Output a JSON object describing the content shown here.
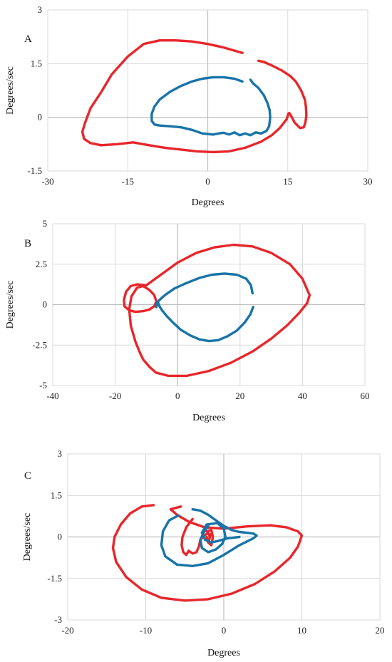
{
  "chart_data": [
    {
      "type": "line",
      "panel_label": "A",
      "xlabel": "Degrees",
      "ylabel": "Degrees/sec",
      "xlim": [
        -30,
        30
      ],
      "ylim": [
        -1.5,
        3
      ],
      "xticks": [
        "-30",
        "-15",
        "0",
        "15",
        "30"
      ],
      "yticks": [
        "-1.5",
        "0",
        "1.5",
        "3"
      ],
      "grid": true,
      "series": [
        {
          "color": "#e8262b",
          "x": [
            6.5,
            3,
            0,
            -3,
            -6,
            -9,
            -12,
            -15,
            -18,
            -20,
            -22,
            -23,
            -23.5,
            -23.2,
            -22,
            -20,
            -17,
            -14,
            -11,
            -8,
            -5,
            -2,
            1,
            4,
            7,
            10,
            12,
            13.5,
            14.8,
            15.1,
            15.3,
            15.6,
            16.3,
            17.3,
            18,
            18.3,
            18.5,
            18.4,
            18.2,
            17.5,
            16.5,
            15.5,
            14,
            12,
            10.5,
            9.5
          ],
          "y": [
            1.8,
            1.95,
            2.05,
            2.12,
            2.15,
            2.15,
            2.05,
            1.7,
            1.2,
            0.7,
            0.25,
            -0.15,
            -0.4,
            -0.6,
            -0.72,
            -0.78,
            -0.75,
            -0.7,
            -0.78,
            -0.85,
            -0.9,
            -0.95,
            -0.97,
            -0.95,
            -0.85,
            -0.68,
            -0.5,
            -0.3,
            -0.05,
            0.1,
            0.12,
            0.05,
            -0.15,
            -0.3,
            -0.28,
            -0.15,
            0.05,
            0.3,
            0.5,
            0.75,
            1.0,
            1.15,
            1.3,
            1.45,
            1.55,
            1.58
          ]
        },
        {
          "color": "#1874a8",
          "x": [
            6.5,
            5,
            3,
            1,
            -1,
            -3,
            -5,
            -7,
            -9,
            -10,
            -10.5,
            -10.5,
            -10,
            -9,
            -7,
            -5,
            -3,
            -1,
            1,
            2,
            3,
            4,
            5,
            6,
            7,
            8,
            9,
            10,
            11,
            11.5,
            11.7,
            11.6,
            11.2,
            10.5,
            9.5,
            8.5,
            8
          ],
          "y": [
            1.0,
            1.08,
            1.12,
            1.12,
            1.08,
            1.0,
            0.88,
            0.72,
            0.5,
            0.3,
            0.1,
            -0.1,
            -0.2,
            -0.23,
            -0.25,
            -0.28,
            -0.35,
            -0.45,
            -0.48,
            -0.45,
            -0.43,
            -0.48,
            -0.42,
            -0.5,
            -0.45,
            -0.5,
            -0.42,
            -0.45,
            -0.38,
            -0.25,
            0.0,
            0.2,
            0.4,
            0.62,
            0.82,
            0.95,
            1.05
          ]
        }
      ]
    },
    {
      "type": "line",
      "panel_label": "B",
      "xlabel": "Degrees",
      "ylabel": "Degrees/sec",
      "xlim": [
        -40,
        60
      ],
      "ylim": [
        -5,
        5
      ],
      "xticks": [
        "-40",
        "-20",
        "0",
        "20",
        "40",
        "60"
      ],
      "yticks": [
        "-5",
        "-2.5",
        "0",
        "2.5",
        "5"
      ],
      "grid": true,
      "series": [
        {
          "color": "#e8262b",
          "x": [
            42,
            40,
            36,
            30,
            24,
            18,
            12,
            6,
            0,
            -5,
            -10,
            -13,
            -15,
            -16.5,
            -17.2,
            -17,
            -15.5,
            -13.5,
            -11,
            -9,
            -7.5,
            -6.8,
            -7.5,
            -9,
            -11,
            -13,
            -14.8,
            -15.5,
            -15,
            -13.5,
            -12,
            -11,
            -9,
            -7,
            -3,
            3,
            10,
            17,
            24,
            30,
            35,
            39,
            41.5,
            42.3
          ],
          "y": [
            0.7,
            1.6,
            2.5,
            3.2,
            3.6,
            3.7,
            3.55,
            3.2,
            2.6,
            1.9,
            1.2,
            1.25,
            1.15,
            0.8,
            0.3,
            -0.1,
            -0.35,
            -0.45,
            -0.4,
            -0.3,
            -0.1,
            0.2,
            0.6,
            0.9,
            1.15,
            1.05,
            0.5,
            -0.3,
            -1.3,
            -2.3,
            -3.0,
            -3.4,
            -3.85,
            -4.2,
            -4.4,
            -4.4,
            -4.1,
            -3.6,
            -2.9,
            -2.1,
            -1.3,
            -0.5,
            0.1,
            0.6
          ]
        },
        {
          "color": "#1874a8",
          "x": [
            24,
            23.5,
            22,
            19,
            15,
            11,
            7,
            3,
            -1,
            -4,
            -6,
            -7,
            -6.8,
            -6.5,
            -6.2,
            -5.8,
            -5,
            -3.5,
            -1.5,
            1,
            4,
            7,
            10,
            13,
            16,
            19,
            21.5,
            23.3,
            24.2
          ],
          "y": [
            0.7,
            1.2,
            1.6,
            1.85,
            1.92,
            1.85,
            1.65,
            1.35,
            1.0,
            0.6,
            0.25,
            0.0,
            -0.15,
            0.15,
            0.1,
            -0.1,
            -0.35,
            -0.7,
            -1.1,
            -1.55,
            -1.9,
            -2.15,
            -2.25,
            -2.2,
            -1.95,
            -1.6,
            -1.1,
            -0.6,
            -0.15
          ]
        }
      ]
    },
    {
      "type": "line",
      "panel_label": "C",
      "xlabel": "Degrees",
      "ylabel": "Degrees/sec",
      "xlim": [
        -20,
        20
      ],
      "ylim": [
        -3,
        3
      ],
      "xticks": [
        "-20",
        "-10",
        "0",
        "10",
        "20"
      ],
      "yticks": [
        "-3",
        "-1.5",
        "0",
        "1.5",
        "3"
      ],
      "grid": true,
      "series": [
        {
          "color": "#e8262b",
          "x": [
            -9,
            -10.5,
            -12,
            -13.2,
            -14,
            -14.2,
            -13.8,
            -12.5,
            -10.5,
            -8,
            -5,
            -2,
            1,
            4,
            6.5,
            8.5,
            9.5,
            10,
            9.5,
            8,
            6,
            3,
            0,
            -2.5,
            -4.5,
            -6,
            -6.8,
            -5.5
          ],
          "y": [
            1.15,
            1.1,
            0.85,
            0.45,
            0.0,
            -0.4,
            -0.9,
            -1.45,
            -1.9,
            -2.2,
            -2.3,
            -2.25,
            -2.05,
            -1.7,
            -1.25,
            -0.75,
            -0.35,
            0.05,
            0.2,
            0.35,
            0.42,
            0.38,
            0.3,
            0.35,
            0.55,
            0.8,
            1.0,
            1.1
          ]
        },
        {
          "color": "#e8262b",
          "x": [
            -4,
            -4.8,
            -5.3,
            -5.4,
            -5.2,
            -4.8,
            -4.5,
            -4,
            -3.5,
            -3.2,
            -3,
            -2.5,
            -2,
            -1.8,
            -1.9,
            -1.7
          ],
          "y": [
            0.65,
            0.35,
            0.0,
            -0.3,
            -0.55,
            -0.65,
            -0.5,
            -0.6,
            -0.55,
            -0.35,
            -0.1,
            0.05,
            0.15,
            0.0,
            -0.15,
            0.1
          ]
        },
        {
          "color": "#e8262b",
          "x": [
            -2.2,
            -1.6,
            -1.4,
            -1.6,
            -2.0,
            -2.2
          ],
          "y": [
            0.2,
            0.25,
            0.0,
            -0.3,
            -0.2,
            0.0
          ]
        },
        {
          "color": "#1874a8",
          "x": [
            -4,
            -3,
            -2,
            -1,
            0,
            1,
            2,
            3,
            3.8,
            4.2,
            3.8,
            2,
            0,
            -2,
            -4,
            -6,
            -7.5,
            -8,
            -7.8,
            -7,
            -5.8
          ],
          "y": [
            1.0,
            0.95,
            0.8,
            0.6,
            0.4,
            0.25,
            0.18,
            0.15,
            0.12,
            0.05,
            -0.05,
            -0.3,
            -0.65,
            -0.95,
            -1.05,
            -1.0,
            -0.7,
            -0.3,
            0.2,
            0.6,
            0.78
          ]
        },
        {
          "color": "#1874a8",
          "x": [
            -2,
            -2.5,
            -3,
            -2.8,
            -2,
            -1,
            -0.2,
            0.2,
            0,
            -0.8,
            -2.2,
            -2.8,
            -2.4,
            -1.6,
            -0.8,
            0.5,
            2
          ],
          "y": [
            0.4,
            0.2,
            -0.1,
            -0.4,
            -0.55,
            -0.45,
            -0.25,
            0.0,
            0.3,
            0.5,
            0.45,
            0.15,
            -0.1,
            -0.2,
            -0.15,
            -0.05,
            0.0
          ]
        }
      ]
    }
  ]
}
